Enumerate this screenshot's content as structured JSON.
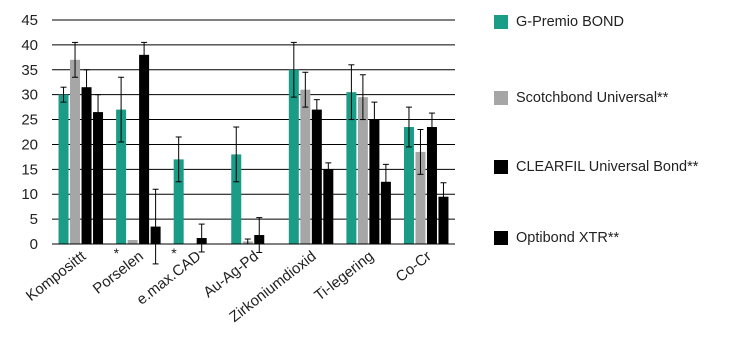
{
  "chart_data": {
    "type": "bar",
    "title": "",
    "xlabel": "",
    "ylabel": "",
    "ylim": [
      0,
      45
    ],
    "yticks": [
      "0",
      "5",
      "10",
      "15",
      "20",
      "25",
      "30",
      "35",
      "40",
      "45"
    ],
    "grid": "horizontal",
    "legend_position": "right",
    "categories": [
      "Komposittt",
      "Porselen",
      "e.max.CAD",
      "Au-Ag-Pd",
      "Zirkoniumdioxid",
      "Ti-legering",
      "Co-Cr"
    ],
    "annotations": [
      {
        "category": "Porselen",
        "text": "*"
      },
      {
        "category": "e.max.CAD",
        "text": "*"
      }
    ],
    "series": [
      {
        "name": "G-Premio BOND",
        "color": "#1a9c86",
        "values": [
          30.0,
          27.0,
          17.0,
          18.0,
          35.0,
          30.5,
          23.5
        ],
        "errors": [
          1.5,
          6.5,
          4.5,
          5.5,
          5.5,
          5.5,
          4.0
        ]
      },
      {
        "name": "Scotchbond Universal**",
        "color": "#a6a6a6",
        "values": [
          37.0,
          0.8,
          0.0,
          0.5,
          31.0,
          29.5,
          18.5
        ],
        "errors": [
          3.5,
          0.0,
          0.0,
          0.5,
          3.5,
          4.5,
          4.5
        ]
      },
      {
        "name": "CLEARFIL Universal Bond**",
        "color": "#000000",
        "values": [
          31.5,
          38.0,
          1.2,
          1.8,
          27.0,
          25.0,
          23.5
        ],
        "errors": [
          3.5,
          2.5,
          2.8,
          3.5,
          2.0,
          3.5,
          2.8
        ]
      },
      {
        "name": "Optibond XTR**",
        "color": "#000000",
        "values": [
          26.5,
          3.5,
          0.0,
          0.0,
          15.0,
          12.5,
          9.5
        ],
        "errors": [
          3.5,
          7.5,
          0.0,
          0.0,
          1.3,
          3.5,
          2.8
        ]
      }
    ]
  }
}
